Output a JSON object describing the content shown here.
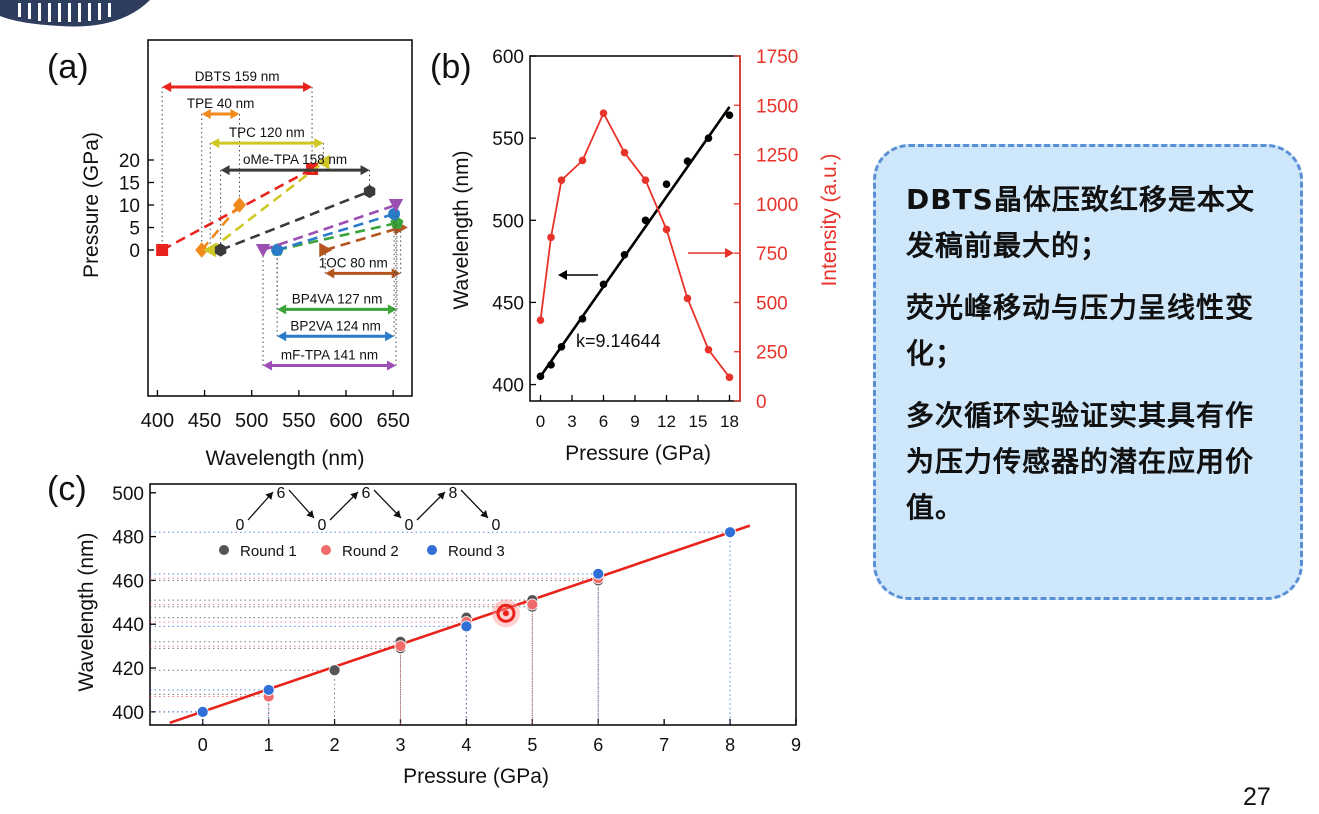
{
  "callout": {
    "lines": [
      "DBTS晶体压致红移是本文发稿前最大的；",
      "荧光峰移动与压力呈线性变化；",
      "多次循环实验证实其具有作为压力传感器的潜在应用价值。"
    ]
  },
  "page_number": "27",
  "chart_data": [
    {
      "panel": "(a)",
      "type": "scatter",
      "xlabel": "Wavelength (nm)",
      "ylabel": "Pressure (GPa)",
      "xlim": [
        390,
        670
      ],
      "xticks": [
        400,
        450,
        500,
        550,
        600,
        650
      ],
      "yticks": [
        0,
        5,
        10,
        15,
        20
      ],
      "samples": [
        {
          "name": "DBTS",
          "label": "DBTS 159 nm",
          "color": "#e8231b",
          "marker": "square",
          "start": [
            405,
            0
          ],
          "end": [
            564,
            18
          ],
          "arrow_y": 116
        },
        {
          "name": "TPE",
          "label": "TPE 40 nm",
          "color": "#f08a1c",
          "marker": "diamond",
          "start": [
            447,
            0
          ],
          "end": [
            487,
            10
          ],
          "arrow_y": 104
        },
        {
          "name": "TPC",
          "label": "TPC 120 nm",
          "color": "#cfc824",
          "marker": "triangle-left",
          "start": [
            456,
            0
          ],
          "end": [
            576,
            19.5
          ],
          "arrow_y": 91
        },
        {
          "name": "oMe-TPA",
          "label": "oMe-TPA 158 nm",
          "color": "#3a3a3a",
          "marker": "hexagon",
          "start": [
            467,
            0
          ],
          "end": [
            625,
            13
          ],
          "arrow_y": 79
        },
        {
          "name": "1OC",
          "label": "1OC 80 nm",
          "color": "#b5541e",
          "marker": "triangle-right",
          "start": [
            578,
            0
          ],
          "end": [
            658,
            5
          ],
          "arrow_y": 33
        },
        {
          "name": "BP4VA",
          "label": "BP4VA 127 nm",
          "color": "#3aa33a",
          "marker": "pentagon",
          "start": [
            527,
            0
          ],
          "end": [
            654,
            6
          ],
          "arrow_y": 17
        },
        {
          "name": "BP2VA",
          "label": "BP2VA 124 nm",
          "color": "#2a7cc8",
          "marker": "circle",
          "start": [
            527,
            0
          ],
          "end": [
            651,
            8
          ],
          "arrow_y": 5
        },
        {
          "name": "mF-TPA",
          "label": "mF-TPA 141 nm",
          "color": "#9b4fb3",
          "marker": "triangle-down",
          "start": [
            512,
            0
          ],
          "end": [
            653,
            10
          ],
          "arrow_y": -8
        }
      ]
    },
    {
      "panel": "(b)",
      "type": "line",
      "xlabel": "Pressure (GPa)",
      "ylabel": "Wavelength (nm)",
      "y2label": "Intensity (a.u.)",
      "xlim": [
        -1,
        19
      ],
      "ylim": [
        390,
        600
      ],
      "y2lim": [
        0,
        1750
      ],
      "xticks": [
        0,
        3,
        6,
        9,
        12,
        15,
        18
      ],
      "yticks": [
        400,
        450,
        500,
        550,
        600
      ],
      "y2ticks": [
        0,
        250,
        500,
        750,
        1000,
        1250,
        1500,
        1750
      ],
      "annotation": "k=9.14644",
      "fit": {
        "x": [
          0,
          18
        ],
        "y": [
          405,
          569
        ]
      },
      "series": [
        {
          "name": "Wavelength",
          "color": "#000000",
          "x": [
            0,
            1,
            2,
            4,
            6,
            8,
            10,
            12,
            14,
            16,
            18
          ],
          "y": [
            405,
            412,
            423,
            440,
            461,
            479,
            500,
            522,
            536,
            550,
            564
          ]
        },
        {
          "name": "Intensity",
          "color": "#e8332a",
          "x": [
            0,
            1,
            2,
            4,
            6,
            8,
            10,
            12,
            14,
            16,
            18
          ],
          "y": [
            410,
            830,
            1120,
            1220,
            1460,
            1260,
            1120,
            870,
            520,
            260,
            120
          ]
        }
      ]
    },
    {
      "panel": "(c)",
      "type": "scatter",
      "xlabel": "Pressure (GPa)",
      "ylabel": "Wavelength (nm)",
      "xlim": [
        -0.8,
        9
      ],
      "ylim": [
        394,
        504
      ],
      "xticks": [
        0,
        1,
        2,
        3,
        4,
        5,
        6,
        7,
        8,
        9
      ],
      "yticks": [
        400,
        420,
        440,
        460,
        480,
        500
      ],
      "cycle_labels": [
        "0",
        "6",
        "0",
        "6",
        "0",
        "8",
        "0"
      ],
      "legend": [
        "Round 1",
        "Round 2",
        "Round 3"
      ],
      "fit": {
        "x": [
          -0.5,
          8.3
        ],
        "y": [
          395,
          485
        ]
      },
      "highlight": [
        4.6,
        445
      ],
      "series": [
        {
          "name": "Round 1",
          "color": "#555555",
          "x": [
            0,
            1,
            2,
            3,
            3,
            4,
            5,
            5,
            6
          ],
          "y": [
            400,
            408,
            419,
            432,
            429,
            443,
            448,
            451,
            460
          ]
        },
        {
          "name": "Round 2",
          "color": "#f26b6b",
          "x": [
            1,
            3,
            4,
            5,
            6
          ],
          "y": [
            407,
            430,
            441,
            449,
            461
          ]
        },
        {
          "name": "Round 3",
          "color": "#2f6fd6",
          "x": [
            0,
            1,
            4,
            6,
            8
          ],
          "y": [
            400,
            410,
            439,
            463,
            482
          ]
        }
      ]
    }
  ]
}
